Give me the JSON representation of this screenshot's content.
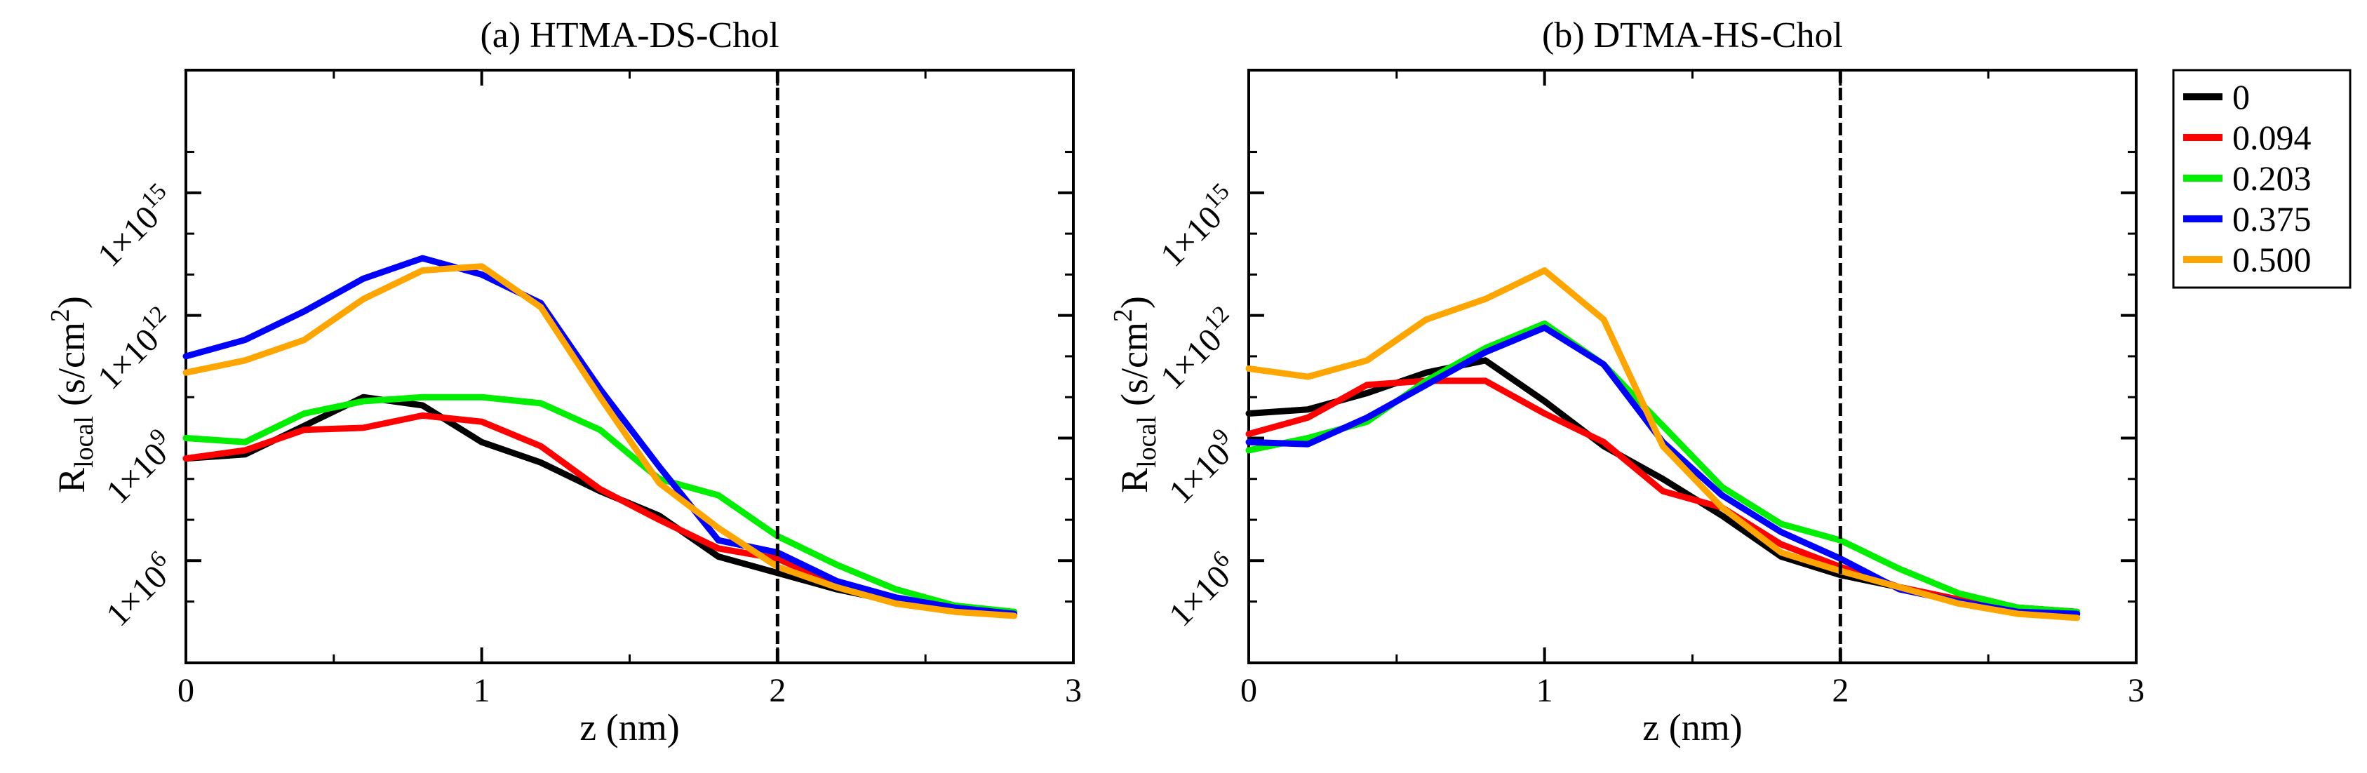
{
  "chart_data": [
    {
      "type": "line",
      "title": "(a) HTMA-DS-Chol",
      "xlabel": "z (nm)",
      "ylabel": "R_local (s/cm^2)",
      "ylabel_main": "R",
      "ylabel_sub": "local",
      "ylabel_unit": "(s/cm",
      "ylabel_sup": "2",
      "ylabel_close": ")",
      "xlim": [
        0,
        3
      ],
      "ylog_exponent_range": [
        3.5,
        18
      ],
      "x_ticks": [
        0,
        1,
        2,
        3
      ],
      "x_tick_labels": [
        "0",
        "1",
        "2",
        "3"
      ],
      "y_ticks_exponent": [
        6,
        9,
        12,
        15
      ],
      "y_tick_labels": [
        "1×10",
        "1×10",
        "1×10",
        "1×10"
      ],
      "y_tick_superscripts": [
        "6",
        "9",
        "12",
        "15"
      ],
      "vertical_marker_x": 2,
      "x": [
        0,
        0.2,
        0.4,
        0.6,
        0.8,
        1.0,
        1.2,
        1.4,
        1.6,
        1.8,
        2.0,
        2.2,
        2.4,
        2.6,
        2.8
      ],
      "series_log10": [
        {
          "name": "0",
          "color": "#000000",
          "values": [
            8.5,
            8.6,
            9.3,
            10.0,
            9.8,
            8.9,
            8.4,
            7.7,
            7.1,
            6.1,
            5.7,
            5.3,
            5.0,
            4.8,
            4.75
          ]
        },
        {
          "name": "0.094",
          "color": "#ff0000",
          "values": [
            8.5,
            8.7,
            9.2,
            9.25,
            9.55,
            9.4,
            8.8,
            7.75,
            7.0,
            6.3,
            6.05,
            5.4,
            5.05,
            4.85,
            4.7
          ]
        },
        {
          "name": "0.203",
          "color": "#00ee00",
          "values": [
            9.0,
            8.9,
            9.6,
            9.9,
            10.0,
            10.0,
            9.85,
            9.2,
            8.0,
            7.6,
            6.6,
            5.9,
            5.3,
            4.9,
            4.75
          ]
        },
        {
          "name": "0.375",
          "color": "#0000ff",
          "values": [
            11.0,
            11.4,
            12.1,
            12.9,
            13.4,
            13.0,
            12.3,
            10.2,
            8.3,
            6.5,
            6.2,
            5.5,
            5.1,
            4.85,
            4.7
          ]
        },
        {
          "name": "0.500",
          "color": "#ffa500",
          "values": [
            10.6,
            10.9,
            11.4,
            12.4,
            13.1,
            13.2,
            12.2,
            10.0,
            7.9,
            6.8,
            5.85,
            5.35,
            4.95,
            4.75,
            4.65
          ]
        }
      ]
    },
    {
      "type": "line",
      "title": "(b) DTMA-HS-Chol",
      "xlabel": "z (nm)",
      "ylabel": "R_local (s/cm^2)",
      "ylabel_main": "R",
      "ylabel_sub": "local",
      "ylabel_unit": "(s/cm",
      "ylabel_sup": "2",
      "ylabel_close": ")",
      "xlim": [
        0,
        3
      ],
      "ylog_exponent_range": [
        3.5,
        18
      ],
      "x_ticks": [
        0,
        1,
        2,
        3
      ],
      "x_tick_labels": [
        "0",
        "1",
        "2",
        "3"
      ],
      "y_ticks_exponent": [
        6,
        9,
        12,
        15
      ],
      "y_tick_labels": [
        "1×10",
        "1×10",
        "1×10",
        "1×10"
      ],
      "y_tick_superscripts": [
        "6",
        "9",
        "12",
        "15"
      ],
      "vertical_marker_x": 2,
      "x": [
        0,
        0.2,
        0.4,
        0.6,
        0.8,
        1.0,
        1.2,
        1.4,
        1.6,
        1.8,
        2.0,
        2.2,
        2.4,
        2.6,
        2.8
      ],
      "series_log10": [
        {
          "name": "0",
          "color": "#000000",
          "values": [
            9.6,
            9.7,
            10.1,
            10.6,
            10.9,
            9.9,
            8.8,
            8.0,
            7.1,
            6.1,
            5.65,
            5.35,
            5.05,
            4.85,
            4.75
          ]
        },
        {
          "name": "0.094",
          "color": "#ff0000",
          "values": [
            9.1,
            9.5,
            10.3,
            10.4,
            10.4,
            9.6,
            8.9,
            7.7,
            7.3,
            6.4,
            5.85,
            5.35,
            5.05,
            4.85,
            4.7
          ]
        },
        {
          "name": "0.203",
          "color": "#00ee00",
          "values": [
            8.7,
            9.0,
            9.4,
            10.4,
            11.2,
            11.8,
            10.8,
            9.3,
            7.8,
            6.9,
            6.5,
            5.8,
            5.2,
            4.85,
            4.75
          ]
        },
        {
          "name": "0.375",
          "color": "#0000ff",
          "values": [
            8.9,
            8.85,
            9.5,
            10.3,
            11.1,
            11.7,
            10.8,
            8.9,
            7.6,
            6.7,
            6.05,
            5.3,
            5.0,
            4.75,
            4.7
          ]
        },
        {
          "name": "0.500",
          "color": "#ffa500",
          "values": [
            10.7,
            10.5,
            10.9,
            11.9,
            12.4,
            13.1,
            11.9,
            8.8,
            7.3,
            6.2,
            5.75,
            5.35,
            4.95,
            4.7,
            4.6
          ]
        }
      ]
    }
  ],
  "legend": {
    "entries": [
      {
        "label": "0",
        "color": "#000000"
      },
      {
        "label": "0.094",
        "color": "#ff0000"
      },
      {
        "label": "0.203",
        "color": "#00ee00"
      },
      {
        "label": "0.375",
        "color": "#0000ff"
      },
      {
        "label": "0.500",
        "color": "#ffa500"
      }
    ]
  }
}
